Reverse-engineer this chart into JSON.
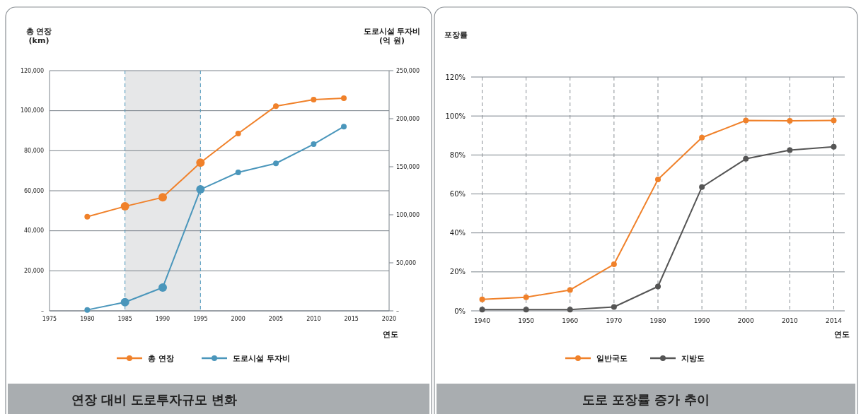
{
  "chart_data": [
    {
      "type": "line",
      "title": "연장 대비 도로투자규모 변화",
      "xlabel": "연도",
      "ylabel": "총 연장\n(km)",
      "y2label": "도로시설 투자비\n(억 원)",
      "x": [
        1980,
        1985,
        1990,
        1995,
        2000,
        2005,
        2010,
        2014
      ],
      "xlim": [
        1975,
        2020
      ],
      "xticks": [
        1975,
        1980,
        1985,
        1990,
        1995,
        2000,
        2005,
        2010,
        2015,
        2020
      ],
      "ylim": [
        0,
        120000
      ],
      "yticks": [
        {
          "value": 0,
          "label": "–"
        },
        {
          "value": 20000,
          "label": "20,000"
        },
        {
          "value": 40000,
          "label": "40,000"
        },
        {
          "value": 60000,
          "label": "60,000"
        },
        {
          "value": 80000,
          "label": "80,000"
        },
        {
          "value": 100000,
          "label": "100,000"
        },
        {
          "value": 120000,
          "label": "120,000"
        }
      ],
      "y2lim": [
        0,
        250000
      ],
      "y2ticks": [
        {
          "value": 0,
          "label": "–"
        },
        {
          "value": 50000,
          "label": "50,000"
        },
        {
          "value": 100000,
          "label": "100,000"
        },
        {
          "value": 150000,
          "label": "150,000"
        },
        {
          "value": 200000,
          "label": "200,000"
        },
        {
          "value": 250000,
          "label": "250,000"
        }
      ],
      "series": [
        {
          "name": "총 연장",
          "color": "#f0812a",
          "values": [
            47000,
            52200,
            56700,
            74000,
            88600,
            102300,
            105500,
            106200
          ]
        },
        {
          "name": "도로시설 투자비",
          "color": "#4a96bb",
          "axis": "y2",
          "values": [
            1000,
            9000,
            24300,
            126400,
            144100,
            153500,
            173500,
            191800
          ]
        }
      ],
      "bands": [
        {
          "axis": "x",
          "from": 1985,
          "to": 1995,
          "color": "#e6e7e8"
        }
      ],
      "ref_lines": [
        {
          "axis": "x",
          "value": 1985,
          "color": "#4a96bb",
          "line_style": "dashed"
        },
        {
          "axis": "x",
          "value": 1995,
          "color": "#4a96bb",
          "line_style": "dashed"
        }
      ],
      "grid": "y",
      "legend": "bottom",
      "marker": "circle"
    },
    {
      "type": "line",
      "title": "도로 포장률 증가 추이",
      "xlabel": "연도",
      "ylabel": "포장률",
      "categories": [
        "1940",
        "1950",
        "1960",
        "1970",
        "1980",
        "1990",
        "2000",
        "2010",
        "2014"
      ],
      "ylim": [
        0,
        120
      ],
      "yticks": [
        {
          "value": 0,
          "label": "0%"
        },
        {
          "value": 20,
          "label": "20%"
        },
        {
          "value": 40,
          "label": "40%"
        },
        {
          "value": 60,
          "label": "60%"
        },
        {
          "value": 80,
          "label": "80%"
        },
        {
          "value": 100,
          "label": "100%"
        },
        {
          "value": 120,
          "label": "120%"
        }
      ],
      "series": [
        {
          "name": "일반국도",
          "color": "#f0812a",
          "values": [
            5.9,
            7.0,
            10.7,
            23.9,
            67.4,
            88.9,
            97.7,
            97.5,
            97.7
          ]
        },
        {
          "name": "지방도",
          "color": "#555555",
          "values": [
            0.6,
            0.6,
            0.6,
            2.0,
            12.5,
            63.5,
            78.0,
            82.5,
            84.2
          ]
        }
      ],
      "grid": true,
      "legend": "bottom",
      "marker": "circle"
    }
  ]
}
